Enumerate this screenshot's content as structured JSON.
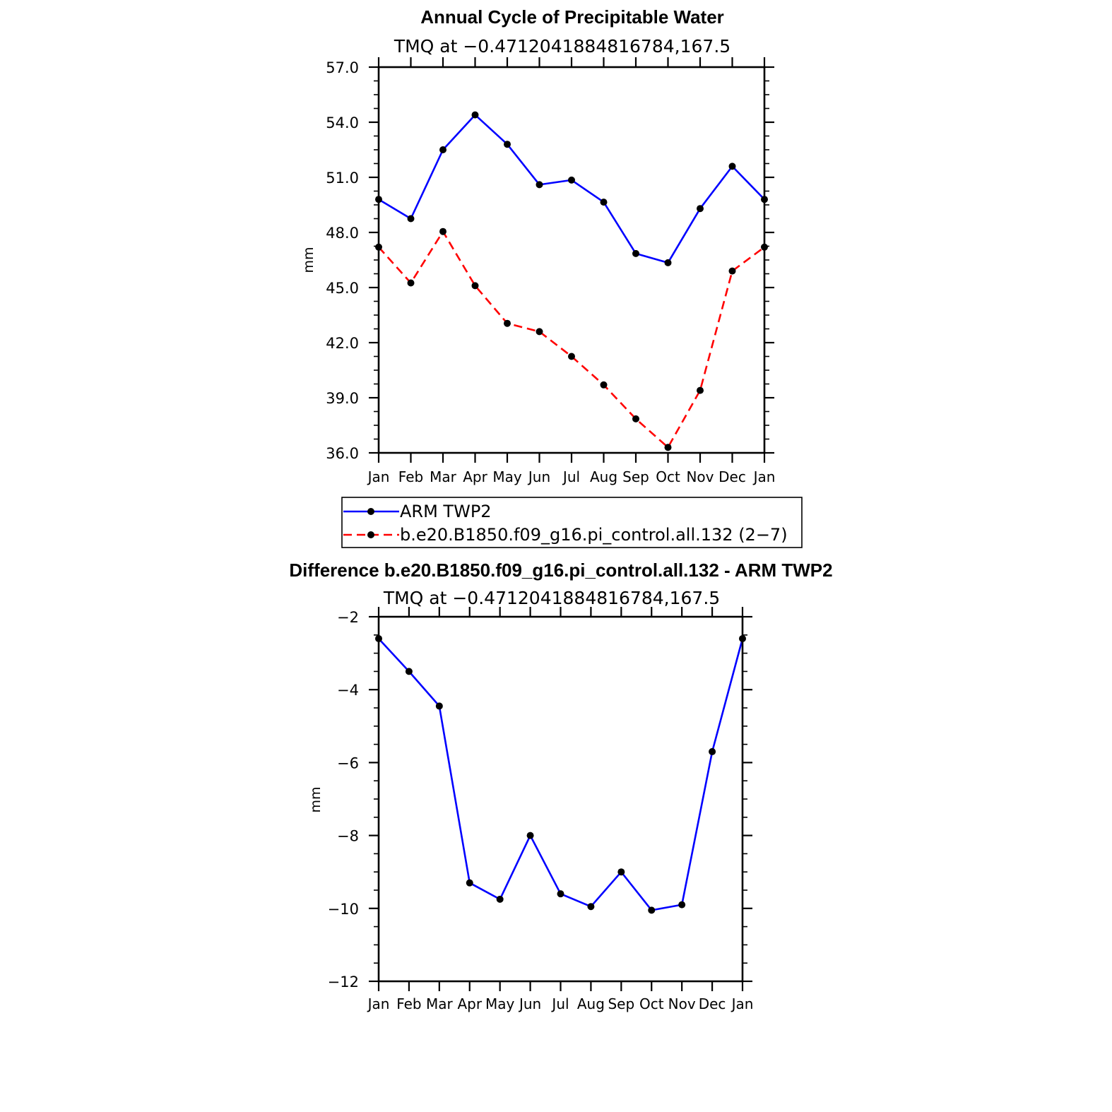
{
  "chart_data": [
    {
      "type": "line",
      "title": "Annual Cycle of Precipitable Water",
      "subtitle": "TMQ at −0.4712041884816784,167.5",
      "xlabel": "",
      "ylabel": "mm",
      "categories": [
        "Jan",
        "Feb",
        "Mar",
        "Apr",
        "May",
        "Jun",
        "Jul",
        "Aug",
        "Sep",
        "Oct",
        "Nov",
        "Dec",
        "Jan"
      ],
      "ylim": [
        36.0,
        57.0
      ],
      "yticks": [
        36.0,
        39.0,
        42.0,
        45.0,
        48.0,
        51.0,
        54.0,
        57.0
      ],
      "ytick_labels": [
        "36.0",
        "39.0",
        "42.0",
        "45.0",
        "48.0",
        "51.0",
        "54.0",
        "57.0"
      ],
      "legend_position": "below",
      "series": [
        {
          "name": "ARM TWP2",
          "color": "#0000ff",
          "dash": "solid",
          "marker": "dot",
          "values": [
            49.8,
            48.75,
            52.5,
            54.4,
            52.8,
            50.6,
            50.85,
            49.65,
            46.85,
            46.35,
            49.3,
            51.6,
            49.8
          ]
        },
        {
          "name": "b.e20.B1850.f09_g16.pi_control.all.132 (2−7)",
          "color": "#ff0000",
          "dash": "dashed",
          "marker": "dot",
          "values": [
            47.2,
            45.25,
            48.05,
            45.1,
            43.05,
            42.6,
            41.25,
            39.7,
            37.85,
            36.3,
            39.4,
            45.9,
            47.2
          ]
        }
      ]
    },
    {
      "type": "line",
      "title": "Difference b.e20.B1850.f09_g16.pi_control.all.132 - ARM TWP2",
      "subtitle": "TMQ at −0.4712041884816784,167.5",
      "xlabel": "",
      "ylabel": "mm",
      "categories": [
        "Jan",
        "Feb",
        "Mar",
        "Apr",
        "May",
        "Jun",
        "Jul",
        "Aug",
        "Sep",
        "Oct",
        "Nov",
        "Dec",
        "Jan"
      ],
      "ylim": [
        -12,
        -2
      ],
      "yticks": [
        -12,
        -10,
        -8,
        -6,
        -4,
        -2
      ],
      "ytick_labels": [
        "−12",
        "−10",
        "−8",
        "−6",
        "−4",
        "−2"
      ],
      "series": [
        {
          "color": "#0000ff",
          "dash": "solid",
          "marker": "dot",
          "values": [
            -2.6,
            -3.5,
            -4.45,
            -9.3,
            -9.75,
            -8.0,
            -9.6,
            -9.95,
            -9.0,
            -10.05,
            -9.9,
            -5.7,
            -2.6
          ]
        }
      ]
    }
  ]
}
